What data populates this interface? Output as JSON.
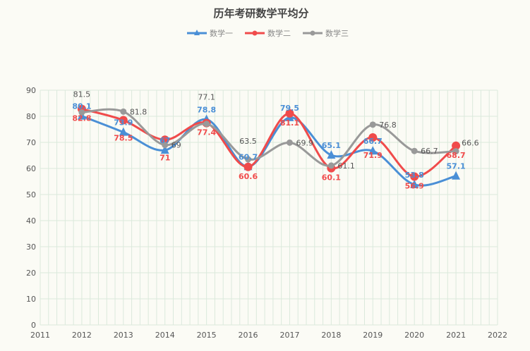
{
  "chart_data": {
    "type": "line",
    "title": "历年考研数学平均分",
    "categories": [
      "2012",
      "2013",
      "2014",
      "2015",
      "2016",
      "2017",
      "2018",
      "2019",
      "2020",
      "2021"
    ],
    "x_ticks": [
      "2011",
      "2012",
      "2013",
      "2014",
      "2015",
      "2016",
      "2017",
      "2018",
      "2019",
      "2020",
      "2021",
      "2022"
    ],
    "y_ticks": [
      0,
      10,
      20,
      30,
      40,
      50,
      60,
      70,
      80,
      90
    ],
    "ylim": [
      0,
      90
    ],
    "xlim": [
      2011,
      2022
    ],
    "grid": true,
    "legend_position": "top",
    "series": [
      {
        "name": "数学一",
        "color": "#4a8fd6",
        "marker": "triangle",
        "values": [
          80.1,
          73.9,
          67,
          78.8,
          60.7,
          79.5,
          65.1,
          66.7,
          53.8,
          57.1
        ]
      },
      {
        "name": "数学二",
        "color": "#f04b4b",
        "marker": "circle",
        "values": [
          82.8,
          78.5,
          71,
          77.4,
          60.6,
          81.1,
          60.1,
          71.9,
          56.9,
          68.7
        ]
      },
      {
        "name": "数学三",
        "color": "#999999",
        "marker": "dot",
        "values": [
          81.5,
          81.8,
          69,
          77.1,
          63.5,
          69.9,
          61.1,
          76.8,
          66.7,
          66.6
        ]
      }
    ]
  }
}
